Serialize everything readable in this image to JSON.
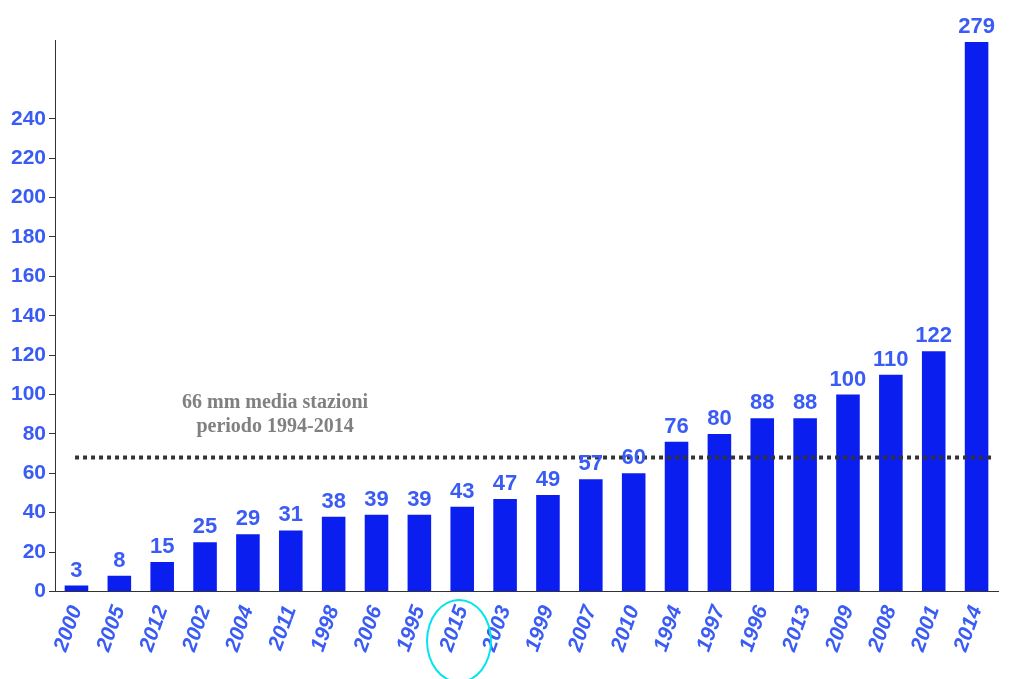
{
  "chart_data": {
    "type": "bar",
    "categories": [
      "2000",
      "2005",
      "2012",
      "2002",
      "2004",
      "2011",
      "1998",
      "2006",
      "1995",
      "2015",
      "2003",
      "1999",
      "2007",
      "2010",
      "1994",
      "1997",
      "1996",
      "2013",
      "2009",
      "2008",
      "2001",
      "2014"
    ],
    "values": [
      3,
      8,
      15,
      25,
      29,
      31,
      38,
      39,
      39,
      43,
      47,
      49,
      57,
      60,
      76,
      80,
      88,
      88,
      100,
      110,
      122,
      279
    ],
    "color": "#0a1ef0",
    "ylim": [
      0,
      280
    ],
    "yticks": [
      0,
      20,
      40,
      60,
      80,
      100,
      120,
      140,
      160,
      180,
      200,
      220,
      240
    ],
    "data_labels": true,
    "grid": false,
    "legend": false,
    "ref_lines": [
      {
        "axis": "y",
        "value": 68,
        "label": "66 mm media stazioni periodo 1994-2014",
        "color": "#333333",
        "line_style": "dotted"
      }
    ]
  }
}
